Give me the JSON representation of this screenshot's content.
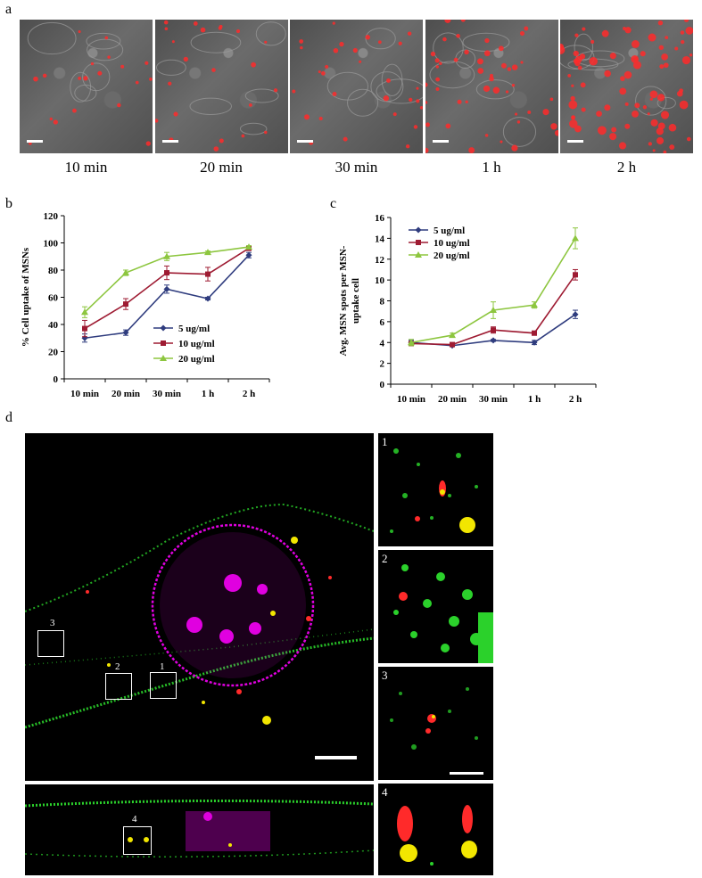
{
  "panels": {
    "a": {
      "letter": "a",
      "time_labels": [
        "10 min",
        "20 min",
        "30 min",
        "1 h",
        "2 h"
      ],
      "red_spot_density": [
        0.15,
        0.2,
        0.3,
        0.55,
        1.0
      ]
    },
    "b": {
      "letter": "b"
    },
    "c": {
      "letter": "c"
    },
    "d": {
      "letter": "d",
      "box_numbers": [
        "1",
        "2",
        "3",
        "4"
      ],
      "inset_numbers": [
        "1",
        "2",
        "3",
        "4"
      ]
    }
  },
  "colors": {
    "s5": "#2f3c7e",
    "s10": "#9e1b32",
    "s20": "#8dc63f",
    "red_spot": "#ff2a2a",
    "green": "#2bd12b",
    "magenta": "#e000e0",
    "yellow": "#f2e600"
  },
  "chart_data": [
    {
      "type": "line",
      "panel": "b",
      "categories": [
        "10 min",
        "20 min",
        "30 min",
        "1 h",
        "2 h"
      ],
      "ylabel": "% Cell uptake of MSNs",
      "ylim": [
        0,
        120
      ],
      "yticks": [
        "0",
        "20",
        "40",
        "60",
        "80",
        "100",
        "120"
      ],
      "legend": "bottom-right",
      "series": [
        {
          "name": "5 ug/ml",
          "values": [
            30,
            34,
            66,
            59,
            91
          ],
          "errors": [
            3,
            2,
            3,
            1,
            2
          ],
          "marker": "diamond",
          "color": "#2f3c7e"
        },
        {
          "name": "10 ug/ml",
          "values": [
            37,
            55,
            78,
            77,
            96
          ],
          "errors": [
            6,
            4,
            5,
            5,
            1
          ],
          "marker": "square",
          "color": "#9e1b32"
        },
        {
          "name": "20 ug/ml",
          "values": [
            49,
            78,
            90,
            93,
            97
          ],
          "errors": [
            4,
            2,
            3,
            1,
            1
          ],
          "marker": "triangle",
          "color": "#8dc63f"
        }
      ]
    },
    {
      "type": "line",
      "panel": "c",
      "categories": [
        "10 min",
        "20 min",
        "30 min",
        "1 h",
        "2 h"
      ],
      "ylabel": "Avg. MSN spots per MSN-uptake cell",
      "ylabel_lines": [
        "Avg. MSN spots per MSN-",
        "uptake cell"
      ],
      "ylim": [
        0,
        16
      ],
      "yticks": [
        "0",
        "2",
        "4",
        "6",
        "8",
        "10",
        "12",
        "14",
        "16"
      ],
      "legend": "top-left",
      "series": [
        {
          "name": "5 ug/ml",
          "values": [
            4.0,
            3.7,
            4.2,
            4.0,
            6.7
          ],
          "errors": [
            0.2,
            0.1,
            0.1,
            0.2,
            0.4
          ],
          "marker": "diamond",
          "color": "#2f3c7e"
        },
        {
          "name": "10 ug/ml",
          "values": [
            3.9,
            3.8,
            5.2,
            4.9,
            10.5
          ],
          "errors": [
            0.2,
            0.1,
            0.3,
            0.2,
            0.5
          ],
          "marker": "square",
          "color": "#9e1b32"
        },
        {
          "name": "20 ug/ml",
          "values": [
            4.0,
            4.7,
            7.1,
            7.6,
            14.0
          ],
          "errors": [
            0.3,
            0.2,
            0.8,
            0.3,
            1.0
          ],
          "marker": "triangle",
          "color": "#8dc63f"
        }
      ]
    }
  ]
}
